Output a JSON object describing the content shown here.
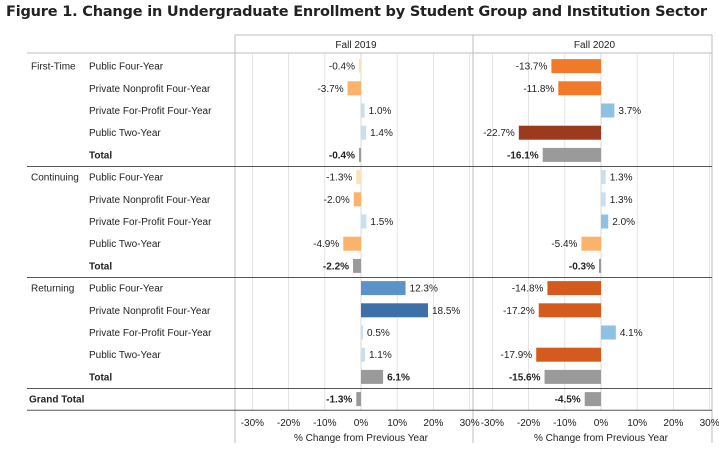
{
  "figure_title": "Figure 1. Change in Undergraduate Enrollment by Student Group and Institution Sector",
  "chart_data": {
    "type": "bar",
    "orientation": "horizontal",
    "panels": [
      "Fall 2019",
      "Fall 2020"
    ],
    "xlabel": "% Change from Previous Year",
    "xlim": [
      -30,
      30
    ],
    "xticks": [
      "-30%",
      "-20%",
      "-10%",
      "0%",
      "10%",
      "20%",
      "30%"
    ],
    "groups": [
      {
        "name": "First-Time",
        "rows": [
          {
            "label": "Public Four-Year",
            "values": [
              -0.4,
              -13.7
            ],
            "labels": [
              "-0.4%",
              "-13.7%"
            ]
          },
          {
            "label": "Private Nonprofit Four-Year",
            "values": [
              -3.7,
              -11.8
            ],
            "labels": [
              "-3.7%",
              "-11.8%"
            ]
          },
          {
            "label": "Private For-Profit Four-Year",
            "values": [
              1.0,
              3.7
            ],
            "labels": [
              "1.0%",
              "3.7%"
            ]
          },
          {
            "label": "Public Two-Year",
            "values": [
              1.4,
              -22.7
            ],
            "labels": [
              "1.4%",
              "-22.7%"
            ]
          },
          {
            "label": "Total",
            "total": true,
            "values": [
              -0.4,
              -16.1
            ],
            "labels": [
              "-0.4%",
              "-16.1%"
            ]
          }
        ]
      },
      {
        "name": "Continuing",
        "rows": [
          {
            "label": "Public Four-Year",
            "values": [
              -1.3,
              1.3
            ],
            "labels": [
              "-1.3%",
              "1.3%"
            ]
          },
          {
            "label": "Private Nonprofit Four-Year",
            "values": [
              -2.0,
              1.3
            ],
            "labels": [
              "-2.0%",
              "1.3%"
            ]
          },
          {
            "label": "Private For-Profit Four-Year",
            "values": [
              1.5,
              2.0
            ],
            "labels": [
              "1.5%",
              "2.0%"
            ]
          },
          {
            "label": "Public Two-Year",
            "values": [
              -4.9,
              -5.4
            ],
            "labels": [
              "-4.9%",
              "-5.4%"
            ]
          },
          {
            "label": "Total",
            "total": true,
            "values": [
              -2.2,
              -0.3
            ],
            "labels": [
              "-2.2%",
              "-0.3%"
            ]
          }
        ]
      },
      {
        "name": "Returning",
        "rows": [
          {
            "label": "Public Four-Year",
            "values": [
              12.3,
              -14.8
            ],
            "labels": [
              "12.3%",
              "-14.8%"
            ]
          },
          {
            "label": "Private Nonprofit Four-Year",
            "values": [
              18.5,
              -17.2
            ],
            "labels": [
              "18.5%",
              "-17.2%"
            ]
          },
          {
            "label": "Private For-Profit Four-Year",
            "values": [
              0.5,
              4.1
            ],
            "labels": [
              "0.5%",
              "4.1%"
            ]
          },
          {
            "label": "Public Two-Year",
            "values": [
              1.1,
              -17.9
            ],
            "labels": [
              "1.1%",
              "-17.9%"
            ]
          },
          {
            "label": "Total",
            "total": true,
            "values": [
              6.1,
              -15.6
            ],
            "labels": [
              "6.1%",
              "-15.6%"
            ]
          }
        ]
      }
    ],
    "grand_total": {
      "label": "Grand Total",
      "values": [
        -1.3,
        -4.5
      ],
      "labels": [
        "-1.3%",
        "-4.5%"
      ]
    },
    "colors": {
      "total": "#9a9a9a",
      "positive_scale": [
        "#c7dff0",
        "#8fc1e3",
        "#5b93c9",
        "#3d6fa8"
      ],
      "negative_scale": [
        "#fde1b8",
        "#fbb36b",
        "#f07a2a",
        "#d45a1e",
        "#9c3a1f"
      ],
      "gridline": "#d9d9d9",
      "separator": "#555555",
      "text": "#222222"
    }
  }
}
